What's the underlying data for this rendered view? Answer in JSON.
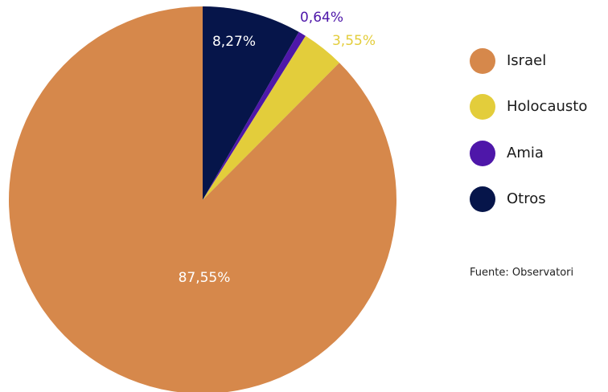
{
  "chart_data": {
    "type": "pie",
    "title": "",
    "slices": [
      {
        "name": "Otros",
        "value": 8.27,
        "label": "8,27%",
        "color": "#06154a",
        "label_color": "#ffffff"
      },
      {
        "name": "Amia",
        "value": 0.64,
        "label": "0,64%",
        "color": "#4e17a9",
        "label_color": "#4e17a9"
      },
      {
        "name": "Holocausto",
        "value": 3.55,
        "label": "3,55%",
        "color": "#e3cd3b",
        "label_color": "#e3cd3b"
      },
      {
        "name": "Israel",
        "value": 87.55,
        "label": "87,55%",
        "color": "#d6884b",
        "label_color": "#ffffff"
      }
    ],
    "legend": {
      "placement": "right",
      "entries": [
        {
          "name": "Israel",
          "color": "#d6884b"
        },
        {
          "name": "Holocausto",
          "color": "#e3cd3b"
        },
        {
          "name": "Amia",
          "color": "#4e17a9"
        },
        {
          "name": "Otros",
          "color": "#06154a"
        }
      ]
    }
  },
  "source": {
    "text": "Fuente: Observatori"
  }
}
